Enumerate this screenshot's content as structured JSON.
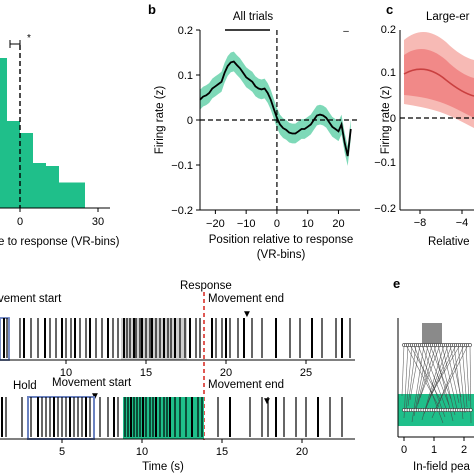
{
  "colors": {
    "accent_green": "#1fbf8a",
    "green_band": "#7ed9b8",
    "red_band": "#f08080",
    "red_band_light": "#f6b3ad",
    "response_dashed": "#d9302a",
    "hold_box": "#6b82c0",
    "gray_shade": "#cfcfcf"
  },
  "panel_a": {
    "xlabel": "e to response (VR-bins)",
    "xticks": [
      "0",
      "30"
    ],
    "star": "*"
  },
  "panel_b": {
    "letter": "b",
    "title": "All trials",
    "ylabel": "Firing rate (z)",
    "xlabel_line1": "Position relative to response",
    "xlabel_line2": "(VR-bins)",
    "sig_dash": "–"
  },
  "panel_c": {
    "letter": "c",
    "title": "Large-er",
    "ylabel": "Firing rate (z)",
    "xlabel": "Relative",
    "yticks": [
      "0.2",
      "0.1",
      "0",
      "−0.1",
      "−0.2"
    ],
    "xticks": [
      "−8",
      "−4"
    ]
  },
  "panel_d": {
    "label_response": "Response",
    "label_movement_start_top": "vement start",
    "label_movement_end_top": "Movement end",
    "label_hold": "Hold",
    "label_movement_start_bottom": "Movement start",
    "label_movement_end_bottom": "Movement end",
    "ticks_top": [
      "10",
      "15",
      "20",
      "25"
    ],
    "ticks_bottom": [
      "5",
      "10",
      "15",
      "20"
    ],
    "xlabel": "Time (s)"
  },
  "panel_e": {
    "letter": "e",
    "xlabel": "In-field pea",
    "xticks": [
      "0",
      "1",
      "2"
    ]
  },
  "chart_data": [
    {
      "type": "line",
      "panel": "b",
      "title": "All trials",
      "xlabel": "Position relative to response (VR-bins)",
      "ylabel": "Firing rate (z)",
      "xlim": [
        -25,
        27
      ],
      "ylim": [
        -0.2,
        0.2
      ],
      "xticks": [
        -20,
        -10,
        0,
        10,
        20
      ],
      "yticks": [
        -0.2,
        -0.1,
        0,
        0.1,
        0.2
      ],
      "x": [
        -25,
        -24,
        -23,
        -22,
        -21,
        -20,
        -19,
        -18,
        -17,
        -16,
        -15,
        -14,
        -13,
        -12,
        -11,
        -10,
        -9,
        -8,
        -7,
        -6,
        -5,
        -4,
        -3,
        -2,
        -1,
        0,
        1,
        2,
        3,
        4,
        5,
        6,
        7,
        8,
        9,
        10,
        11,
        12,
        13,
        14,
        15,
        16,
        17,
        18,
        19,
        20,
        21,
        22,
        23,
        24
      ],
      "series": [
        {
          "values": [
            0.045,
            0.052,
            0.055,
            0.06,
            0.07,
            0.075,
            0.08,
            0.085,
            0.105,
            0.12,
            0.128,
            0.13,
            0.122,
            0.115,
            0.105,
            0.095,
            0.09,
            0.085,
            0.075,
            0.07,
            0.068,
            0.07,
            0.06,
            0.045,
            0.025,
            0.005,
            -0.01,
            -0.018,
            -0.022,
            -0.028,
            -0.03,
            -0.03,
            -0.025,
            -0.02,
            -0.02,
            -0.015,
            -0.01,
            0.0,
            0.01,
            0.012,
            0.01,
            0.005,
            -0.005,
            -0.015,
            -0.02,
            -0.025,
            -0.01,
            -0.05,
            -0.08,
            -0.02
          ],
          "error": 0.022
        }
      ],
      "annotations": {
        "dashed_vertical_x": 0,
        "dashed_horizontal_y": 0,
        "significance_bar": [
          -16,
          -6
        ]
      }
    },
    {
      "type": "bar",
      "panel": "a",
      "xlabel": "e to response (VR-bins)",
      "categories": [
        "-5",
        "0",
        "5",
        "10",
        "15",
        "20",
        "25"
      ],
      "values": [
        1.0,
        0.58,
        0.5,
        0.3,
        0.28,
        0.17,
        0.17
      ]
    }
  ]
}
